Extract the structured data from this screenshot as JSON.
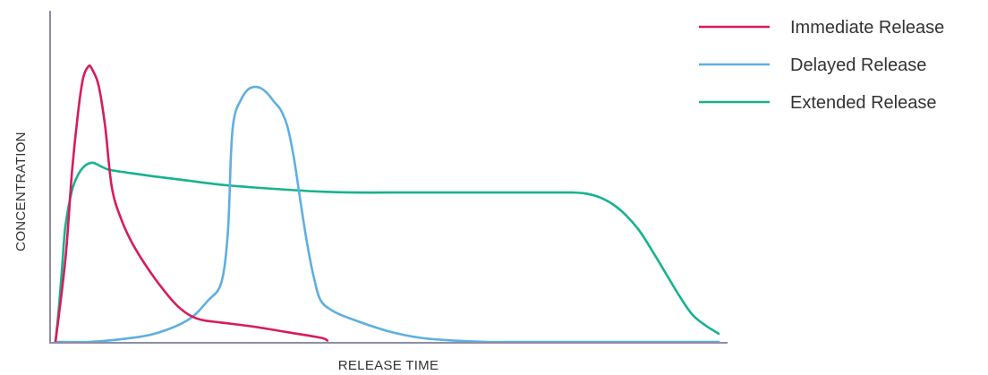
{
  "chart_data": {
    "type": "line",
    "xlabel": "RELEASE TIME",
    "ylabel": "CONCENTRATION",
    "xlim": [
      0,
      100
    ],
    "ylim": [
      0,
      100
    ],
    "grid": false,
    "legend_position": "top-right",
    "series": [
      {
        "name": "Immediate Release",
        "color": "#d81b5c",
        "x": [
          0,
          1.5,
          2.5,
          3.5,
          4.2,
          5.0,
          5.5,
          6.5,
          7.5,
          8.5,
          10,
          12,
          15,
          18,
          20,
          22,
          25,
          30,
          35,
          40,
          41
        ],
        "y": [
          0,
          30,
          62,
          85,
          96,
          100,
          99,
          93,
          78,
          56,
          44,
          34,
          23,
          14,
          10,
          8,
          7,
          5.5,
          3.5,
          1.5,
          0.5
        ]
      },
      {
        "name": "Delayed Release",
        "color": "#5eafe0",
        "x": [
          0,
          5,
          10,
          15,
          20,
          23,
          25,
          26,
          26.5,
          27,
          28,
          29,
          30,
          31,
          32,
          33,
          34,
          35,
          36,
          37,
          38,
          39,
          40,
          42,
          45,
          50,
          55,
          60,
          65,
          70,
          75,
          80,
          85,
          90,
          100
        ],
        "y": [
          0,
          0,
          1,
          3,
          8,
          15,
          21.5,
          40,
          70,
          82,
          88,
          91.5,
          92.5,
          92,
          90,
          87,
          84,
          78,
          66,
          50,
          35,
          23,
          15,
          11,
          8,
          4,
          1.5,
          0.5,
          0,
          0,
          0,
          0,
          0,
          0,
          0
        ]
      },
      {
        "name": "Extended Release",
        "color": "#17b28f",
        "x": [
          0,
          0.5,
          1,
          1.5,
          2.5,
          3.5,
          4.5,
          5.5,
          6.2,
          7,
          8,
          10,
          15,
          20,
          25,
          30,
          35,
          40,
          45,
          50,
          55,
          60,
          65,
          70,
          75,
          78,
          80,
          82,
          84,
          86,
          88,
          90,
          92,
          94,
          96,
          98,
          100
        ],
        "y": [
          0,
          12,
          27,
          42,
          55,
          61,
          64,
          65,
          64.5,
          63.5,
          62.5,
          61.7,
          60,
          58.5,
          57,
          56,
          55.2,
          54.5,
          54.2,
          54.2,
          54.2,
          54.2,
          54.2,
          54.2,
          54.2,
          54.2,
          53.8,
          52.5,
          50,
          46,
          40.5,
          33,
          25,
          17,
          10,
          6,
          3
        ]
      }
    ]
  }
}
